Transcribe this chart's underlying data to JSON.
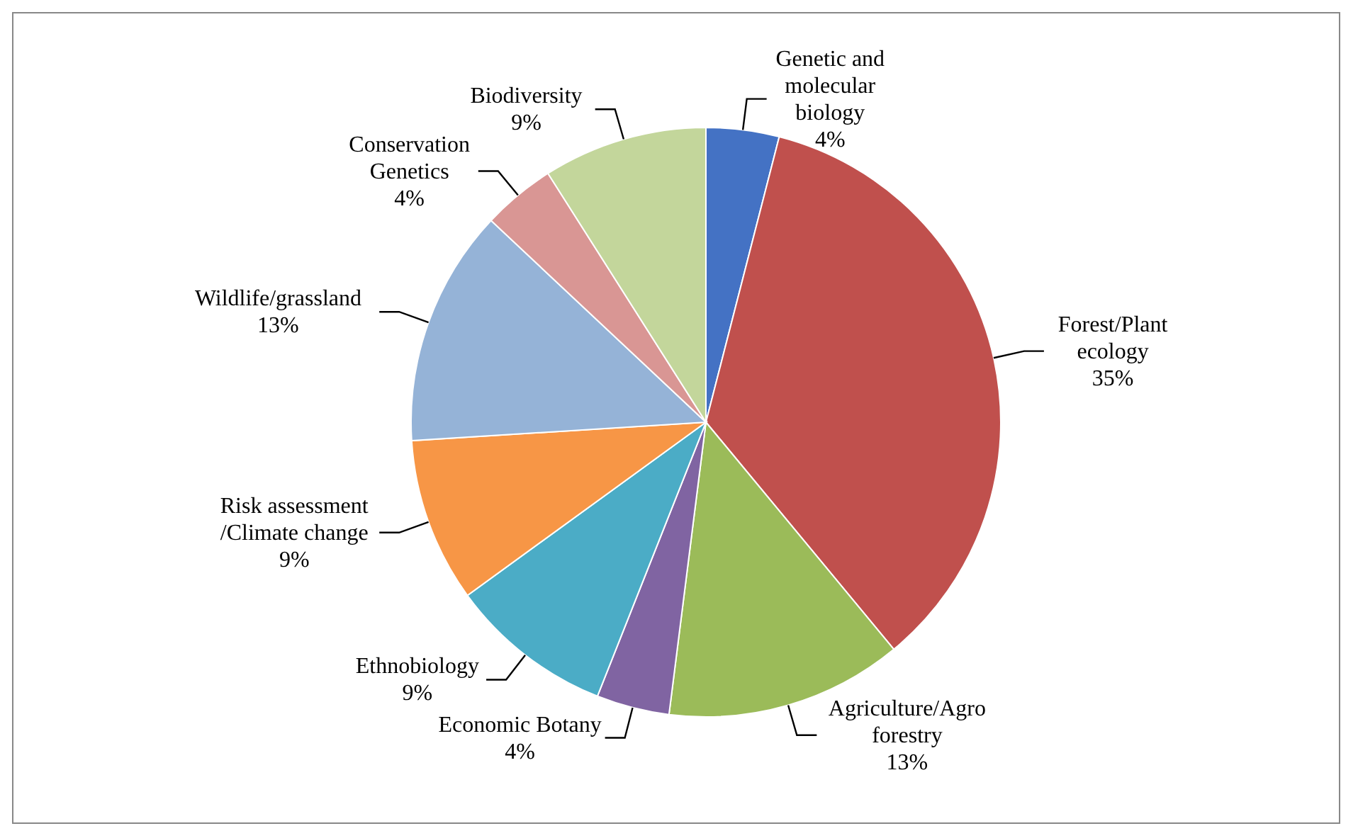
{
  "chart_data": {
    "type": "pie",
    "categories": [
      "Genetic and molecular biology",
      "Forest/Plant ecology",
      "Agriculture/Agro forestry",
      "Economic Botany",
      "Ethnobiology",
      "Risk assessment /Climate change",
      "Wildlife/grassland",
      "Conservation Genetics",
      "Biodiversity"
    ],
    "values": [
      4,
      35,
      13,
      4,
      9,
      9,
      13,
      4,
      9
    ],
    "colors": [
      "#4472c4",
      "#c0504d",
      "#9bbb59",
      "#8064a2",
      "#4bacc6",
      "#f79646",
      "#95b3d7",
      "#d99694",
      "#c3d69b"
    ],
    "value_labels": [
      "4%",
      "35%",
      "13%",
      "4%",
      "9%",
      "9%",
      "13%",
      "4%",
      "9%"
    ]
  }
}
